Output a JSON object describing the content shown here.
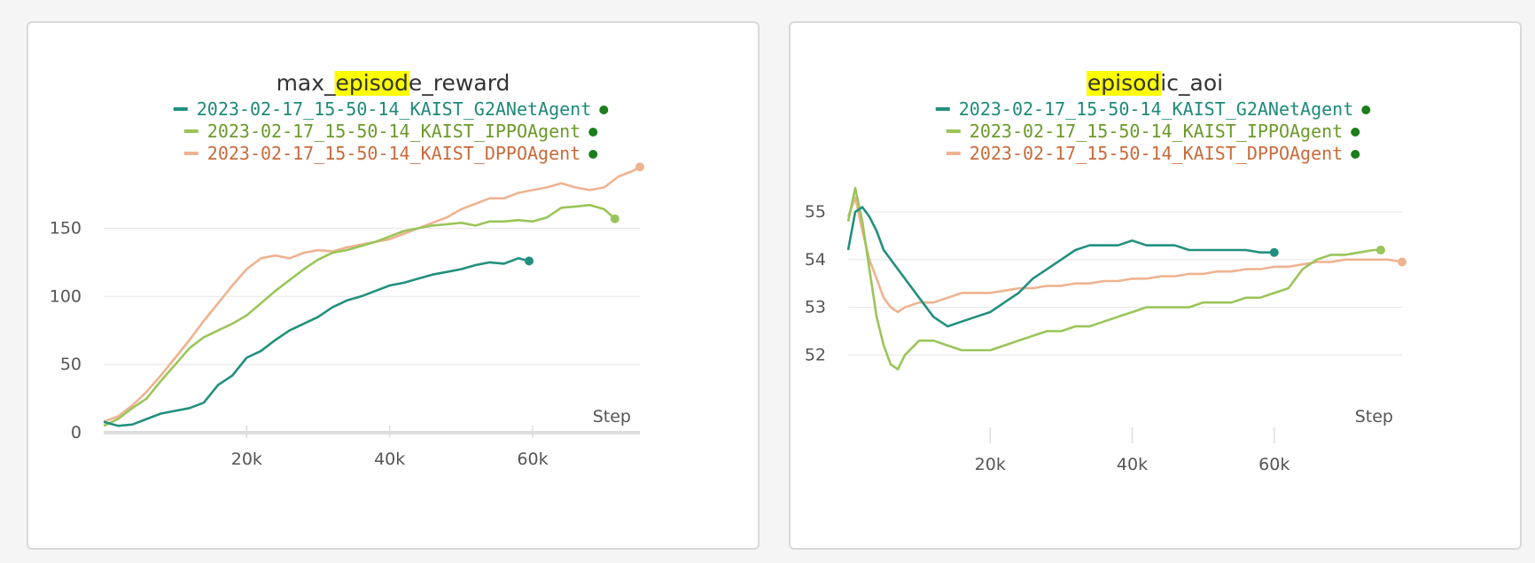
{
  "highlight": {
    "term": "episod",
    "color": "#ffff00"
  },
  "legend_status_color": "#1b7d1b",
  "chart_data": [
    {
      "type": "line",
      "title": "max_episode_reward",
      "xlabel": "Step",
      "ylabel": "",
      "xlim": [
        0,
        75000
      ],
      "ylim": [
        0,
        190
      ],
      "xticks": [
        20000,
        40000,
        60000
      ],
      "xtick_labels": [
        "20k",
        "40k",
        "60k"
      ],
      "yticks": [
        0,
        50,
        100,
        150
      ],
      "ytick_labels": [
        "0",
        "50",
        "100",
        "150"
      ],
      "grid": true,
      "legend_position": "top-center",
      "series": [
        {
          "name": "2023-02-17_15-50-14_KAIST_G2ANetAgent",
          "color": "#22907f",
          "x": [
            0,
            2000,
            4000,
            6000,
            8000,
            10000,
            12000,
            14000,
            16000,
            18000,
            20000,
            22000,
            24000,
            26000,
            28000,
            30000,
            32000,
            34000,
            36000,
            38000,
            40000,
            42000,
            44000,
            46000,
            48000,
            50000,
            52000,
            54000,
            56000,
            58000,
            59500
          ],
          "y": [
            8,
            5,
            6,
            10,
            14,
            16,
            18,
            22,
            35,
            42,
            55,
            60,
            68,
            75,
            80,
            85,
            92,
            97,
            100,
            104,
            108,
            110,
            113,
            116,
            118,
            120,
            123,
            125,
            124,
            128,
            126
          ]
        },
        {
          "name": "2023-02-17_15-50-14_KAIST_IPPOAgent",
          "color": "#9ac559",
          "x": [
            0,
            2000,
            4000,
            6000,
            8000,
            10000,
            12000,
            14000,
            16000,
            18000,
            20000,
            22000,
            24000,
            26000,
            28000,
            30000,
            32000,
            34000,
            36000,
            38000,
            40000,
            42000,
            44000,
            46000,
            48000,
            50000,
            52000,
            54000,
            56000,
            58000,
            60000,
            62000,
            64000,
            66000,
            68000,
            70000,
            71500
          ],
          "y": [
            5,
            10,
            18,
            25,
            38,
            50,
            62,
            70,
            75,
            80,
            86,
            95,
            104,
            112,
            120,
            127,
            132,
            134,
            137,
            140,
            144,
            148,
            150,
            152,
            153,
            154,
            152,
            155,
            155,
            156,
            155,
            158,
            165,
            166,
            167,
            164,
            157
          ]
        },
        {
          "name": "2023-02-17_15-50-14_KAIST_DPPOAgent",
          "color": "#eeb391",
          "x": [
            0,
            2000,
            4000,
            6000,
            8000,
            10000,
            12000,
            14000,
            16000,
            18000,
            20000,
            22000,
            24000,
            26000,
            28000,
            30000,
            32000,
            34000,
            36000,
            38000,
            40000,
            42000,
            44000,
            46000,
            48000,
            50000,
            52000,
            54000,
            56000,
            58000,
            60000,
            62000,
            64000,
            66000,
            68000,
            70000,
            72000,
            74000,
            75000
          ],
          "y": [
            8,
            12,
            20,
            30,
            42,
            55,
            68,
            82,
            95,
            108,
            120,
            128,
            130,
            128,
            132,
            134,
            133,
            136,
            138,
            140,
            142,
            146,
            150,
            154,
            158,
            164,
            168,
            172,
            172,
            176,
            178,
            180,
            183,
            180,
            178,
            180,
            188,
            192,
            195
          ]
        }
      ]
    },
    {
      "type": "line",
      "title": "episodic_aoi",
      "xlabel": "Step",
      "ylabel": "",
      "xlim": [
        0,
        78000
      ],
      "ylim": [
        51.3,
        55.8
      ],
      "xticks": [
        20000,
        40000,
        60000
      ],
      "xtick_labels": [
        "20k",
        "40k",
        "60k"
      ],
      "yticks": [
        52,
        53,
        54,
        55
      ],
      "ytick_labels": [
        "52",
        "53",
        "54",
        "55"
      ],
      "grid": true,
      "legend_position": "top-center",
      "series": [
        {
          "name": "2023-02-17_15-50-14_KAIST_G2ANetAgent",
          "color": "#22907f",
          "x": [
            0,
            1000,
            2000,
            3000,
            4000,
            5000,
            6000,
            8000,
            10000,
            12000,
            14000,
            16000,
            18000,
            20000,
            22000,
            24000,
            26000,
            28000,
            30000,
            32000,
            34000,
            36000,
            38000,
            40000,
            42000,
            44000,
            46000,
            48000,
            50000,
            52000,
            54000,
            56000,
            58000,
            60000
          ],
          "y": [
            54.2,
            55.0,
            55.1,
            54.9,
            54.6,
            54.2,
            54.0,
            53.6,
            53.2,
            52.8,
            52.6,
            52.7,
            52.8,
            52.9,
            53.1,
            53.3,
            53.6,
            53.8,
            54.0,
            54.2,
            54.3,
            54.3,
            54.3,
            54.4,
            54.3,
            54.3,
            54.3,
            54.2,
            54.2,
            54.2,
            54.2,
            54.2,
            54.15,
            54.15
          ]
        },
        {
          "name": "2023-02-17_15-50-14_KAIST_IPPOAgent",
          "color": "#9ac559",
          "x": [
            0,
            1000,
            2000,
            3000,
            4000,
            5000,
            6000,
            7000,
            8000,
            10000,
            12000,
            14000,
            16000,
            18000,
            20000,
            22000,
            24000,
            26000,
            28000,
            30000,
            32000,
            34000,
            36000,
            38000,
            40000,
            42000,
            44000,
            46000,
            48000,
            50000,
            52000,
            54000,
            56000,
            58000,
            60000,
            62000,
            64000,
            66000,
            68000,
            70000,
            72000,
            74000,
            75000
          ],
          "y": [
            54.8,
            55.5,
            54.8,
            53.8,
            52.8,
            52.2,
            51.8,
            51.7,
            52.0,
            52.3,
            52.3,
            52.2,
            52.1,
            52.1,
            52.1,
            52.2,
            52.3,
            52.4,
            52.5,
            52.5,
            52.6,
            52.6,
            52.7,
            52.8,
            52.9,
            53.0,
            53.0,
            53.0,
            53.0,
            53.1,
            53.1,
            53.1,
            53.2,
            53.2,
            53.3,
            53.4,
            53.8,
            54.0,
            54.1,
            54.1,
            54.15,
            54.2,
            54.2
          ]
        },
        {
          "name": "2023-02-17_15-50-14_KAIST_DPPOAgent",
          "color": "#eeb391",
          "x": [
            0,
            1000,
            2000,
            3000,
            4000,
            5000,
            6000,
            7000,
            8000,
            10000,
            12000,
            14000,
            16000,
            18000,
            20000,
            22000,
            24000,
            26000,
            28000,
            30000,
            32000,
            34000,
            36000,
            38000,
            40000,
            42000,
            44000,
            46000,
            48000,
            50000,
            52000,
            54000,
            56000,
            58000,
            60000,
            62000,
            64000,
            66000,
            68000,
            70000,
            72000,
            74000,
            76000,
            78000
          ],
          "y": [
            54.9,
            55.3,
            54.6,
            54.0,
            53.6,
            53.2,
            53.0,
            52.9,
            53.0,
            53.1,
            53.1,
            53.2,
            53.3,
            53.3,
            53.3,
            53.35,
            53.4,
            53.4,
            53.45,
            53.45,
            53.5,
            53.5,
            53.55,
            53.55,
            53.6,
            53.6,
            53.65,
            53.65,
            53.7,
            53.7,
            53.75,
            53.75,
            53.8,
            53.8,
            53.85,
            53.85,
            53.9,
            53.95,
            53.95,
            54.0,
            54.0,
            54.0,
            54.0,
            53.95
          ]
        }
      ]
    }
  ]
}
